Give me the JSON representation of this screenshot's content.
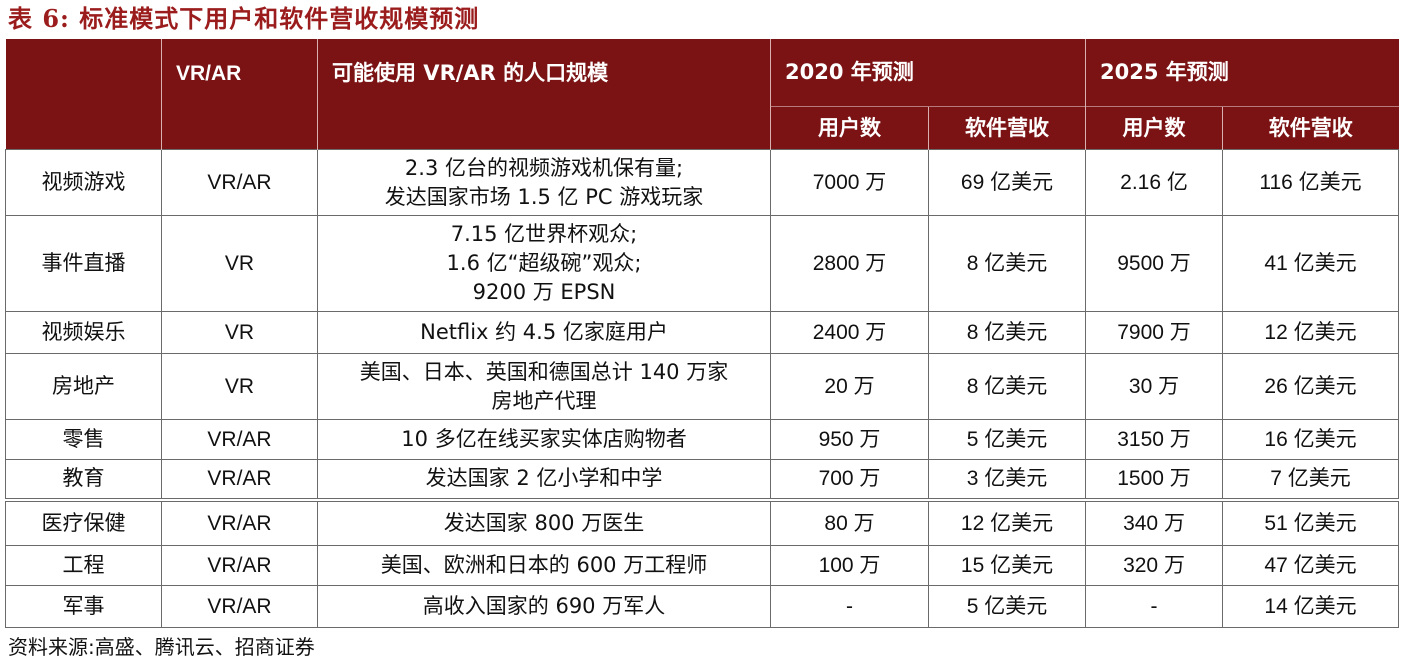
{
  "title": "表 6:  标准模式下用户和软件营收规模预测",
  "header": {
    "col_vrar": "VR/AR",
    "col_population": "可能使用 VR/AR 的人口规模",
    "year_2020": "2020 年预测",
    "year_2025": "2025 年预测",
    "sub_users": "用户数",
    "sub_revenue": "软件营收"
  },
  "rows": [
    {
      "category": "视频游戏",
      "vrar": "VR/AR",
      "population": [
        "2.3 亿台的视频游戏机保有量;",
        "发达国家市场 1.5 亿 PC 游戏玩家"
      ],
      "users_2020": "7000 万",
      "rev_2020": "69 亿美元",
      "users_2025": "2.16 亿",
      "rev_2025": "116 亿美元"
    },
    {
      "category": "事件直播",
      "vrar": "VR",
      "population": [
        "7.15 亿世界杯观众;",
        "1.6 亿“超级碗”观众;",
        "9200 万 EPSN"
      ],
      "users_2020": "2800 万",
      "rev_2020": "8 亿美元",
      "users_2025": "9500 万",
      "rev_2025": "41 亿美元"
    },
    {
      "category": "视频娱乐",
      "vrar": "VR",
      "population": [
        "Netflix 约 4.5 亿家庭用户"
      ],
      "users_2020": "2400 万",
      "rev_2020": "8 亿美元",
      "users_2025": "7900 万",
      "rev_2025": "12 亿美元"
    },
    {
      "category": "房地产",
      "vrar": "VR",
      "population": [
        "美国、日本、英国和德国总计 140 万家",
        "房地产代理"
      ],
      "users_2020": "20 万",
      "rev_2020": "8 亿美元",
      "users_2025": "30 万",
      "rev_2025": "26 亿美元"
    },
    {
      "category": "零售",
      "vrar": "VR/AR",
      "population": [
        "10 多亿在线买家实体店购物者"
      ],
      "users_2020": "950 万",
      "rev_2020": "5 亿美元",
      "users_2025": "3150 万",
      "rev_2025": "16 亿美元"
    },
    {
      "category": "教育",
      "vrar": "VR/AR",
      "population": [
        "发达国家 2 亿小学和中学"
      ],
      "users_2020": "700 万",
      "rev_2020": "3 亿美元",
      "users_2025": "1500 万",
      "rev_2025": "7 亿美元"
    },
    {
      "category": "医疗保健",
      "vrar": "VR/AR",
      "population": [
        "发达国家 800 万医生"
      ],
      "users_2020": "80 万",
      "rev_2020": "12 亿美元",
      "users_2025": "340 万",
      "rev_2025": "51 亿美元"
    },
    {
      "category": "工程",
      "vrar": "VR/AR",
      "population": [
        "美国、欧洲和日本的 600 万工程师"
      ],
      "users_2020": "100 万",
      "rev_2020": "15 亿美元",
      "users_2025": "320 万",
      "rev_2025": "47 亿美元"
    },
    {
      "category": "军事",
      "vrar": "VR/AR",
      "population": [
        "高收入国家的 690 万军人"
      ],
      "users_2020": "-",
      "rev_2020": "5 亿美元",
      "users_2025": "-",
      "rev_2025": "14 亿美元"
    }
  ],
  "source": "资料来源:高盛、腾讯云、招商证券"
}
